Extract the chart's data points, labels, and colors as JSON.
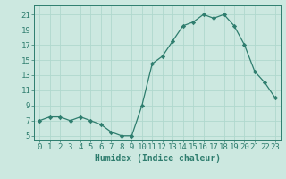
{
  "x": [
    0,
    1,
    2,
    3,
    4,
    5,
    6,
    7,
    8,
    9,
    10,
    11,
    12,
    13,
    14,
    15,
    16,
    17,
    18,
    19,
    20,
    21,
    22,
    23
  ],
  "y": [
    7,
    7.5,
    7.5,
    7,
    7.5,
    7,
    6.5,
    5.5,
    5,
    5,
    9,
    14.5,
    15.5,
    17.5,
    19.5,
    20,
    21,
    20.5,
    21,
    19.5,
    17,
    13.5,
    12,
    10
  ],
  "line_color": "#2e7d6e",
  "marker": "D",
  "marker_size": 2.2,
  "bg_color": "#cce8e0",
  "grid_color": "#b0d8ce",
  "tick_color": "#2e7d6e",
  "xlabel": "Humidex (Indice chaleur)",
  "ylabel_ticks": [
    5,
    7,
    9,
    11,
    13,
    15,
    17,
    19,
    21
  ],
  "xlim": [
    -0.5,
    23.5
  ],
  "ylim": [
    4.5,
    22.2
  ],
  "xtick_labels": [
    "0",
    "1",
    "2",
    "3",
    "4",
    "5",
    "6",
    "7",
    "8",
    "9",
    "10",
    "11",
    "12",
    "13",
    "14",
    "15",
    "16",
    "17",
    "18",
    "19",
    "20",
    "21",
    "22",
    "23"
  ],
  "xlabel_fontsize": 7,
  "tick_fontsize": 6.5
}
